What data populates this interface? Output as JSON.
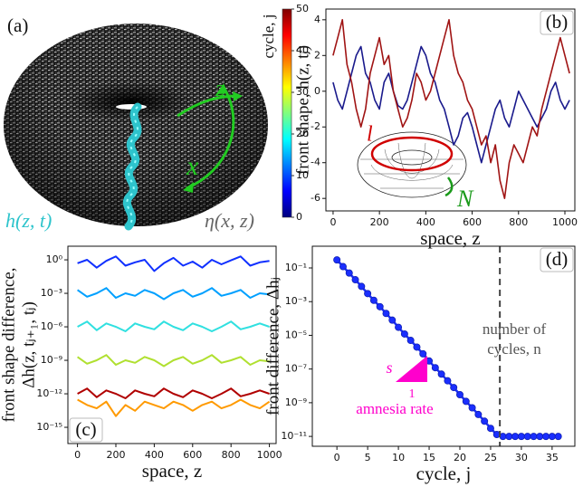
{
  "chart_data": [
    {
      "type": "image",
      "panel_label": "(a)",
      "annotations": [
        "h(z, t)",
        "η(x, z)",
        "z",
        "x"
      ],
      "colorbar_label": "cycle, j",
      "colormap": "jet",
      "clim": [
        0,
        50
      ],
      "cticks": [
        0,
        10,
        20,
        30,
        40,
        50
      ]
    },
    {
      "type": "line",
      "panel_label": "(b)",
      "xlabel": "space, z",
      "ylabel": [
        "front shape, h(z, tⱼ)"
      ],
      "x": [
        0,
        20,
        40,
        60,
        80,
        100,
        120,
        140,
        160,
        180,
        200,
        220,
        240,
        260,
        280,
        300,
        320,
        340,
        360,
        380,
        400,
        420,
        440,
        460,
        480,
        500,
        520,
        540,
        560,
        580,
        600,
        620,
        640,
        660,
        680,
        700,
        720,
        740,
        760,
        780,
        800,
        820,
        840,
        860,
        880,
        900,
        920,
        940,
        960,
        980,
        1000,
        1020
      ],
      "series": [
        {
          "color": "#1a1a8c",
          "values": [
            0.5,
            -0.5,
            -1,
            0,
            1,
            2,
            2.5,
            1,
            0.5,
            -0.5,
            -1,
            0.5,
            1,
            0,
            -0.8,
            -1,
            -0.5,
            0.5,
            1.5,
            2.5,
            2,
            1,
            0.5,
            -0.5,
            -1,
            -2,
            -3,
            -2.5,
            -1.5,
            -1.2,
            -2,
            -3,
            -4,
            -3,
            -2,
            -1,
            -0.5,
            -1.5,
            -2,
            -1,
            0,
            -0.5,
            -1,
            -1.5,
            -2,
            -1.5,
            -1,
            0,
            0.5,
            -0.5,
            -1,
            -0.5
          ]
        },
        {
          "color": "#a01414",
          "values": [
            2,
            3,
            4,
            1.5,
            0.5,
            -1,
            -2,
            -1,
            1,
            2,
            3,
            1.5,
            2,
            0,
            -1,
            -2,
            -1.5,
            -0.5,
            1,
            0.5,
            -0.5,
            0,
            1,
            2,
            3,
            4,
            2,
            1,
            0.5,
            -0.5,
            -1,
            -2,
            -3,
            -2.5,
            -4,
            -3,
            -5,
            -6,
            -4,
            -3,
            -3.5,
            -4,
            -3,
            -2,
            -2.5,
            -1,
            0,
            1,
            2,
            3,
            2,
            1
          ]
        }
      ],
      "xlim": [
        -31,
        1043
      ],
      "ylim": [
        -6.7,
        4.6
      ],
      "xticks": [
        0,
        200,
        400,
        600,
        800,
        1000
      ],
      "yticks": [
        -6,
        -4,
        -2,
        0,
        2,
        4
      ],
      "inset_labels": [
        {
          "text": "l",
          "color": "#d00000"
        },
        {
          "text": "N",
          "color": "#1a9a1a"
        }
      ]
    },
    {
      "type": "line",
      "panel_label": "(c)",
      "xlabel": "space, z",
      "ylabel": [
        "front shape difference,",
        "Δh(z, tⱼ₊₁, tⱼ)"
      ],
      "log": true,
      "x": [
        0,
        50,
        100,
        150,
        200,
        250,
        300,
        350,
        400,
        450,
        500,
        550,
        600,
        650,
        700,
        750,
        800,
        850,
        900,
        950,
        1000
      ],
      "series": [
        {
          "color": "#1030ff",
          "values": [
            0.5,
            1,
            0.2,
            0.8,
            2,
            0.3,
            0.6,
            1,
            0.1,
            0.5,
            1.5,
            0.3,
            0.7,
            0.2,
            1,
            0.4,
            0.9,
            2,
            0.3,
            0.6,
            0.8
          ]
        },
        {
          "color": "#00a0ff",
          "values": [
            0.002,
            0.0005,
            0.001,
            0.003,
            0.0004,
            0.001,
            0.0006,
            0.002,
            0.001,
            0.0003,
            0.001,
            0.002,
            0.0005,
            0.001,
            0.003,
            0.0006,
            0.001,
            0.002,
            0.0004,
            0.001,
            0.0008
          ]
        },
        {
          "color": "#30e0e0",
          "values": [
            1e-06,
            3e-06,
            5e-07,
            2e-06,
            1e-06,
            4e-07,
            2e-06,
            1e-06,
            6e-07,
            3e-06,
            1e-06,
            5e-07,
            2e-06,
            1e-06,
            4e-07,
            1e-06,
            3e-06,
            6e-07,
            1e-06,
            2e-06,
            1e-06
          ]
        },
        {
          "color": "#b0e030",
          "values": [
            2e-09,
            5e-10,
            1e-09,
            3e-09,
            4e-10,
            1e-09,
            6e-10,
            2e-09,
            1e-09,
            3e-10,
            1e-09,
            2e-09,
            5e-10,
            1e-09,
            3e-09,
            6e-10,
            1e-09,
            2e-09,
            4e-10,
            1e-09,
            8e-10
          ]
        },
        {
          "color": "#ff9a00",
          "values": [
            3e-13,
            1e-13,
            5e-14,
            2e-13,
            1e-14,
            1e-13,
            3e-14,
            2e-13,
            1e-13,
            5e-14,
            2e-13,
            1e-13,
            3e-14,
            1e-13,
            2e-13,
            5e-14,
            1e-13,
            3e-13,
            1e-13,
            5e-14,
            2e-13
          ]
        },
        {
          "color": "#b00000",
          "values": [
            1e-12,
            3e-12,
            5e-13,
            2e-12,
            1e-12,
            4e-13,
            2e-12,
            1e-12,
            6e-13,
            3e-12,
            1e-12,
            5e-13,
            2e-12,
            1e-12,
            4e-13,
            1e-12,
            3e-12,
            6e-13,
            1e-12,
            2e-12,
            1e-12
          ]
        }
      ],
      "xlim": [
        -50,
        1035
      ],
      "ylim": [
        3.5e-17,
        16.6
      ],
      "xticks": [
        0,
        200,
        400,
        600,
        800,
        1000
      ],
      "yticks": [
        {
          "value": 1,
          "label": "10⁰"
        },
        {
          "value": 0.001,
          "label": "10⁻³"
        },
        {
          "value": 1e-06,
          "label": "10⁻⁶"
        },
        {
          "value": 1e-09,
          "label": "10⁻⁹"
        },
        {
          "value": 1e-12,
          "label": "10⁻¹²"
        },
        {
          "value": 1e-15,
          "label": "10⁻¹⁵"
        }
      ]
    },
    {
      "type": "line",
      "panel_label": "(d)",
      "xlabel": "cycle, j",
      "ylabel": [
        "front difference, Δhⱼ"
      ],
      "log": true,
      "x": [
        0,
        1,
        2,
        3,
        4,
        5,
        6,
        7,
        8,
        9,
        10,
        11,
        12,
        13,
        14,
        15,
        16,
        17,
        18,
        19,
        20,
        21,
        22,
        23,
        24,
        25,
        26,
        27,
        28,
        29,
        30,
        31,
        32,
        33,
        34,
        35,
        36
      ],
      "series": [
        {
          "color": "#1a2eff",
          "values": [
            0.3,
            0.12,
            0.05,
            0.02,
            0.008,
            0.003,
            0.0012,
            0.0005,
            0.0002,
            8e-05,
            3e-05,
            1.2e-05,
            5e-06,
            2e-06,
            8e-07,
            3e-07,
            1.2e-07,
            5e-08,
            2e-08,
            8e-09,
            3e-09,
            1.2e-09,
            5e-10,
            2e-10,
            8e-11,
            3e-11,
            1.3e-11,
            1e-11,
            1e-11,
            1e-11,
            1e-11,
            1e-11,
            1e-11,
            1e-11,
            1e-11,
            1e-11,
            1e-11
          ]
        }
      ],
      "markers": true,
      "vline": 26.5,
      "xlim": [
        -4,
        38.7
      ],
      "ylim": [
        2.6e-12,
        1.95
      ],
      "xticks": [
        0,
        5,
        10,
        15,
        20,
        25,
        30,
        35
      ],
      "yticks": [
        {
          "value": 0.1,
          "label": "10⁻¹"
        },
        {
          "value": 0.001,
          "label": "10⁻³"
        },
        {
          "value": 1e-05,
          "label": "10⁻⁵"
        },
        {
          "value": 1e-07,
          "label": "10⁻⁷"
        },
        {
          "value": 1e-09,
          "label": "10⁻⁹"
        },
        {
          "value": 1e-11,
          "label": "10⁻¹¹"
        }
      ],
      "annotations": [
        "number of",
        "cycles, n"
      ],
      "slope_labels": [
        "s",
        "1",
        "amnesia rate"
      ],
      "slope_color": "#ff00cc"
    }
  ]
}
